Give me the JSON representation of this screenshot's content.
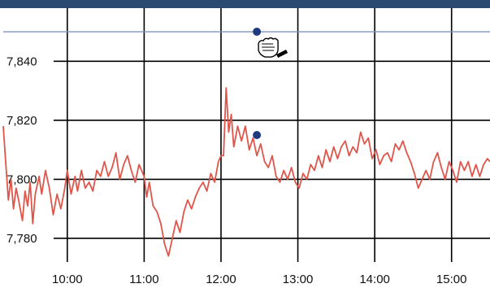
{
  "chart_data": {
    "type": "line",
    "x_ticks": [
      "10:00",
      "11:00",
      "12:00",
      "13:00",
      "14:00",
      "15:00"
    ],
    "y_ticks": [
      7780,
      7800,
      7820,
      7840
    ],
    "y_tick_labels": [
      "7,780",
      "7,800",
      "7,820",
      "7,840"
    ],
    "ylim": [
      7772,
      7858
    ],
    "xlim": [
      "09:10",
      "15:30"
    ],
    "grid": true,
    "reference_line": 7850,
    "series": [
      {
        "color": "#e0554a",
        "points": [
          [
            "09:10",
            7818
          ],
          [
            "09:12",
            7805
          ],
          [
            "09:14",
            7793
          ],
          [
            "09:16",
            7800
          ],
          [
            "09:18",
            7790
          ],
          [
            "09:20",
            7797
          ],
          [
            "09:22",
            7793
          ],
          [
            "09:25",
            7786
          ],
          [
            "09:27",
            7796
          ],
          [
            "09:29",
            7791
          ],
          [
            "09:31",
            7799
          ],
          [
            "09:33",
            7785
          ],
          [
            "09:35",
            7795
          ],
          [
            "09:38",
            7801
          ],
          [
            "09:40",
            7795
          ],
          [
            "09:43",
            7803
          ],
          [
            "09:46",
            7797
          ],
          [
            "09:49",
            7788
          ],
          [
            "09:52",
            7795
          ],
          [
            "09:55",
            7790
          ],
          [
            "09:58",
            7797
          ],
          [
            "10:00",
            7803
          ],
          [
            "10:03",
            7795
          ],
          [
            "10:06",
            7801
          ],
          [
            "10:08",
            7796
          ],
          [
            "10:11",
            7803
          ],
          [
            "10:14",
            7797
          ],
          [
            "10:17",
            7799
          ],
          [
            "10:20",
            7796
          ],
          [
            "10:23",
            7803
          ],
          [
            "10:26",
            7801
          ],
          [
            "10:29",
            7806
          ],
          [
            "10:32",
            7801
          ],
          [
            "10:35",
            7804
          ],
          [
            "10:38",
            7809
          ],
          [
            "10:41",
            7800
          ],
          [
            "10:44",
            7805
          ],
          [
            "10:47",
            7808
          ],
          [
            "10:50",
            7803
          ],
          [
            "10:53",
            7799
          ],
          [
            "10:56",
            7805
          ],
          [
            "11:00",
            7801
          ],
          [
            "11:02",
            7794
          ],
          [
            "11:04",
            7799
          ],
          [
            "11:07",
            7791
          ],
          [
            "11:10",
            7789
          ],
          [
            "11:13",
            7785
          ],
          [
            "11:16",
            7778
          ],
          [
            "11:19",
            7774
          ],
          [
            "11:22",
            7780
          ],
          [
            "11:25",
            7786
          ],
          [
            "11:28",
            7782
          ],
          [
            "11:31",
            7789
          ],
          [
            "11:34",
            7793
          ],
          [
            "11:37",
            7790
          ],
          [
            "11:40",
            7794
          ],
          [
            "11:43",
            7797
          ],
          [
            "11:46",
            7799
          ],
          [
            "11:49",
            7796
          ],
          [
            "11:52",
            7802
          ],
          [
            "11:55",
            7799
          ],
          [
            "11:58",
            7806
          ],
          [
            "12:00",
            7808
          ],
          [
            "12:02",
            7808
          ],
          [
            "12:04",
            7831
          ],
          [
            "12:06",
            7816
          ],
          [
            "12:08",
            7822
          ],
          [
            "12:10",
            7811
          ],
          [
            "12:13",
            7818
          ],
          [
            "12:16",
            7813
          ],
          [
            "12:19",
            7818
          ],
          [
            "12:22",
            7810
          ],
          [
            "12:25",
            7814
          ],
          [
            "12:28",
            7808
          ],
          [
            "12:31",
            7812
          ],
          [
            "12:34",
            7806
          ],
          [
            "12:37",
            7804
          ],
          [
            "12:40",
            7808
          ],
          [
            "12:43",
            7801
          ],
          [
            "12:46",
            7799
          ],
          [
            "12:49",
            7803
          ],
          [
            "12:52",
            7800
          ],
          [
            "12:55",
            7804
          ],
          [
            "12:58",
            7799
          ],
          [
            "13:01",
            7797
          ],
          [
            "13:04",
            7802
          ],
          [
            "13:07",
            7800
          ],
          [
            "13:10",
            7805
          ],
          [
            "13:13",
            7803
          ],
          [
            "13:16",
            7808
          ],
          [
            "13:19",
            7804
          ],
          [
            "13:22",
            7810
          ],
          [
            "13:25",
            7806
          ],
          [
            "13:28",
            7811
          ],
          [
            "13:31",
            7807
          ],
          [
            "13:34",
            7811
          ],
          [
            "13:37",
            7813
          ],
          [
            "13:40",
            7808
          ],
          [
            "13:43",
            7811
          ],
          [
            "13:46",
            7809
          ],
          [
            "13:49",
            7816
          ],
          [
            "13:52",
            7812
          ],
          [
            "13:55",
            7814
          ],
          [
            "13:58",
            7807
          ],
          [
            "14:01",
            7810
          ],
          [
            "14:04",
            7805
          ],
          [
            "14:07",
            7808
          ],
          [
            "14:10",
            7809
          ],
          [
            "14:13",
            7806
          ],
          [
            "14:16",
            7812
          ],
          [
            "14:19",
            7810
          ],
          [
            "14:22",
            7813
          ],
          [
            "14:25",
            7809
          ],
          [
            "14:28",
            7806
          ],
          [
            "14:31",
            7802
          ],
          [
            "14:34",
            7797
          ],
          [
            "14:37",
            7800
          ],
          [
            "14:40",
            7803
          ],
          [
            "14:43",
            7800
          ],
          [
            "14:46",
            7806
          ],
          [
            "14:49",
            7809
          ],
          [
            "14:52",
            7804
          ],
          [
            "14:55",
            7800
          ],
          [
            "14:58",
            7806
          ],
          [
            "15:01",
            7803
          ],
          [
            "15:04",
            7799
          ],
          [
            "15:07",
            7806
          ],
          [
            "15:10",
            7803
          ],
          [
            "15:13",
            7806
          ],
          [
            "15:16",
            7801
          ],
          [
            "15:19",
            7805
          ],
          [
            "15:22",
            7801
          ],
          [
            "15:25",
            7805
          ],
          [
            "15:28",
            7807
          ],
          [
            "15:30",
            7806
          ]
        ]
      }
    ],
    "markers": [
      {
        "x": "12:28",
        "y": 7850,
        "color": "#1f3a80"
      },
      {
        "x": "12:28",
        "y": 7815,
        "color": "#1f3a80"
      }
    ],
    "cursor_icon": "grab-hand-cursor-icon"
  }
}
